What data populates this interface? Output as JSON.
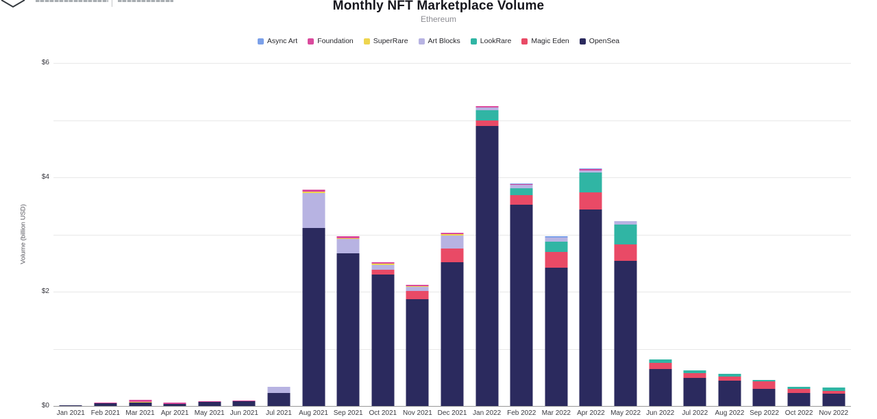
{
  "brand": {
    "logo_icon": "diamond-logo-partial-icon",
    "cropped_text_remnants": true
  },
  "chart_data": {
    "type": "bar",
    "stacked": true,
    "title": "Monthly NFT Marketplace Volume",
    "subtitle": "Ethereum",
    "xlabel": "",
    "ylabel": "Volume (billion USD)",
    "ylim": [
      0,
      6
    ],
    "y_ticks": [
      {
        "value": 0,
        "label": "$0"
      },
      {
        "value": 2,
        "label": "$2"
      },
      {
        "value": 4,
        "label": "$4"
      },
      {
        "value": 6,
        "label": "$6"
      }
    ],
    "gridline_values": [
      1,
      2,
      3,
      4,
      5,
      6
    ],
    "grid": true,
    "legend_position": "top-center",
    "categories": [
      "Jan 2021",
      "Feb 2021",
      "Mar 2021",
      "Apr 2021",
      "May 2021",
      "Jun 2021",
      "Jul 2021",
      "Aug 2021",
      "Sep 2021",
      "Oct 2021",
      "Nov 2021",
      "Dec 2021",
      "Jan 2022",
      "Feb 2022",
      "Mar 2022",
      "Apr 2022",
      "May 2022",
      "Jun 2022",
      "Jul 2022",
      "Aug 2022",
      "Sep 2022",
      "Oct 2022",
      "Nov 2022"
    ],
    "series": [
      {
        "name": "Async Art",
        "color": "#7ba0e9",
        "values": [
          0,
          0,
          0,
          0,
          0,
          0,
          0,
          0,
          0,
          0,
          0,
          0,
          0,
          0.01,
          0.02,
          0.02,
          0.01,
          0,
          0,
          0,
          0,
          0,
          0
        ]
      },
      {
        "name": "Foundation",
        "color": "#da4a9d",
        "values": [
          0,
          0.01,
          0.04,
          0.02,
          0.01,
          0.01,
          0.01,
          0.04,
          0.03,
          0.02,
          0.02,
          0.02,
          0.03,
          0.01,
          0,
          0.02,
          0,
          0,
          0,
          0,
          0,
          0,
          0
        ]
      },
      {
        "name": "SuperRare",
        "color": "#eed54f",
        "values": [
          0,
          0,
          0.01,
          0,
          0,
          0,
          0,
          0.02,
          0.02,
          0.02,
          0.01,
          0.03,
          0,
          0,
          0,
          0,
          0,
          0,
          0,
          0,
          0,
          0,
          0
        ]
      },
      {
        "name": "Art Blocks",
        "color": "#b7b3e2",
        "values": [
          0,
          0,
          0,
          0,
          0,
          0,
          0.1,
          0.62,
          0.25,
          0.09,
          0.08,
          0.23,
          0.04,
          0.06,
          0.07,
          0.04,
          0.05,
          0,
          0,
          0,
          0,
          0,
          0
        ]
      },
      {
        "name": "LookRare",
        "color": "#30b5a4",
        "values": [
          0,
          0,
          0,
          0,
          0,
          0,
          0,
          0,
          0,
          0,
          0,
          0,
          0.19,
          0.12,
          0.19,
          0.34,
          0.35,
          0.06,
          0.05,
          0.04,
          0.02,
          0.03,
          0.06
        ]
      },
      {
        "name": "Magic Eden",
        "color": "#e94a66",
        "values": [
          0,
          0,
          0,
          0,
          0,
          0,
          0,
          0,
          0,
          0.08,
          0.14,
          0.24,
          0.09,
          0.17,
          0.27,
          0.3,
          0.29,
          0.11,
          0.08,
          0.08,
          0.13,
          0.07,
          0.05
        ]
      },
      {
        "name": "OpenSea",
        "color": "#2b2a5e",
        "values": [
          0.01,
          0.05,
          0.06,
          0.04,
          0.07,
          0.09,
          0.23,
          3.11,
          2.67,
          2.3,
          1.87,
          2.51,
          4.9,
          3.52,
          2.42,
          3.44,
          2.54,
          0.65,
          0.49,
          0.44,
          0.3,
          0.23,
          0.21
        ]
      }
    ],
    "stack_order_bottom_to_top": [
      "OpenSea",
      "Magic Eden",
      "LookRare",
      "Art Blocks",
      "SuperRare",
      "Foundation",
      "Async Art"
    ]
  }
}
